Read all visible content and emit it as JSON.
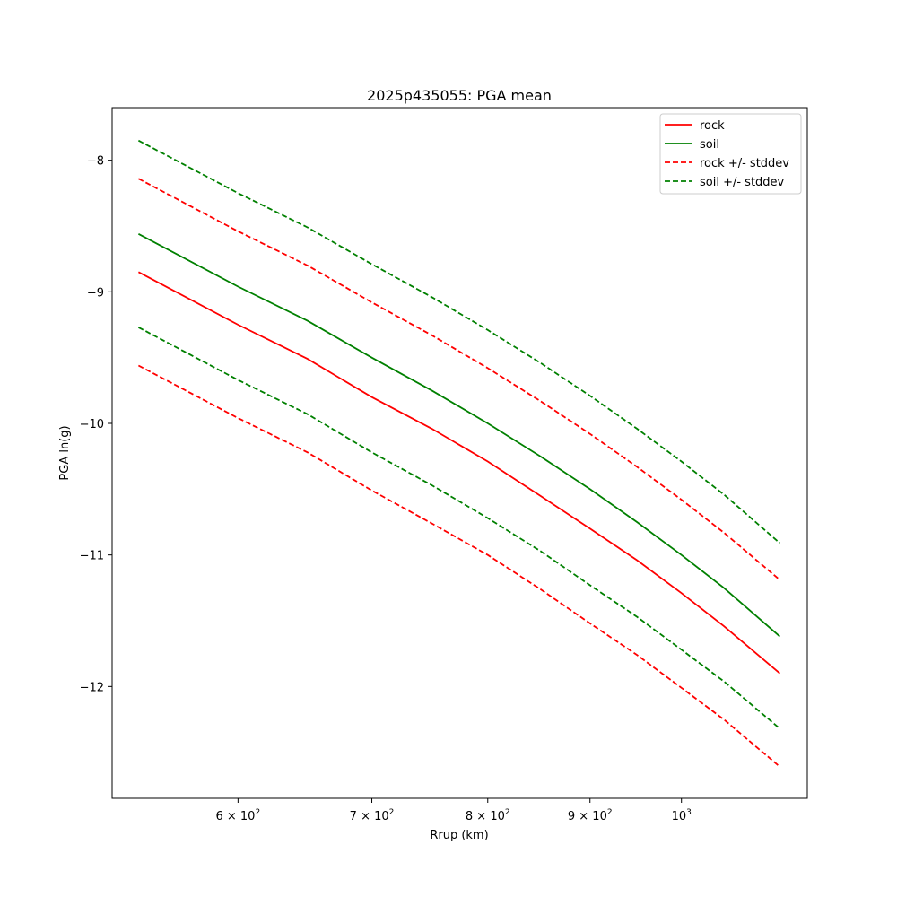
{
  "chart_data": {
    "type": "line",
    "title": "2025p435055: PGA mean",
    "xlabel": "Rrup (km)",
    "ylabel": "PGA ln(g)",
    "xscale": "log",
    "xlim": [
      519,
      1156
    ],
    "ylim": [
      -12.85,
      -7.6
    ],
    "grid": false,
    "legend_position": "top-right",
    "xticks": [
      {
        "value": 600,
        "base": "6 × 10",
        "exp": "2"
      },
      {
        "value": 700,
        "base": "7 × 10",
        "exp": "2"
      },
      {
        "value": 800,
        "base": "8 × 10",
        "exp": "2"
      },
      {
        "value": 900,
        "base": "9 × 10",
        "exp": "2"
      },
      {
        "value": 1000,
        "base": "10",
        "exp": "3"
      }
    ],
    "yticks": [
      {
        "value": -8,
        "label": "−8"
      },
      {
        "value": -9,
        "label": "−9"
      },
      {
        "value": -10,
        "label": "−10"
      },
      {
        "value": -11,
        "label": "−11"
      },
      {
        "value": -12,
        "label": "−12"
      }
    ],
    "x": [
      535,
      600,
      650,
      700,
      750,
      800,
      850,
      900,
      950,
      1000,
      1050,
      1120
    ],
    "series": [
      {
        "name": "rock",
        "color": "#ff0000",
        "style": "solid",
        "legend": true,
        "values": [
          -8.85,
          -9.25,
          -9.51,
          -9.8,
          -10.04,
          -10.29,
          -10.55,
          -10.8,
          -11.04,
          -11.29,
          -11.54,
          -11.9
        ]
      },
      {
        "name": "soil",
        "color": "#008000",
        "style": "solid",
        "legend": true,
        "values": [
          -8.56,
          -8.96,
          -9.22,
          -9.5,
          -9.75,
          -10.0,
          -10.25,
          -10.5,
          -10.75,
          -11.0,
          -11.25,
          -11.62
        ]
      },
      {
        "name": "rock +/- stddev",
        "color": "#ff0000",
        "style": "dashed",
        "legend": true,
        "values": [
          -8.14,
          -8.54,
          -8.8,
          -9.08,
          -9.33,
          -9.58,
          -9.83,
          -10.08,
          -10.33,
          -10.58,
          -10.83,
          -11.19
        ]
      },
      {
        "name": "",
        "color": "#ff0000",
        "style": "dashed",
        "legend": false,
        "values": [
          -9.56,
          -9.96,
          -10.22,
          -10.51,
          -10.76,
          -11.0,
          -11.26,
          -11.52,
          -11.76,
          -12.01,
          -12.25,
          -12.61
        ]
      },
      {
        "name": "soil +/- stddev",
        "color": "#008000",
        "style": "dashed",
        "legend": true,
        "values": [
          -7.85,
          -8.25,
          -8.51,
          -8.79,
          -9.04,
          -9.29,
          -9.54,
          -9.79,
          -10.04,
          -10.29,
          -10.54,
          -10.91
        ]
      },
      {
        "name": "",
        "color": "#008000",
        "style": "dashed",
        "legend": false,
        "values": [
          -9.27,
          -9.67,
          -9.93,
          -10.22,
          -10.47,
          -10.72,
          -10.97,
          -11.23,
          -11.47,
          -11.72,
          -11.96,
          -12.32
        ]
      }
    ]
  }
}
